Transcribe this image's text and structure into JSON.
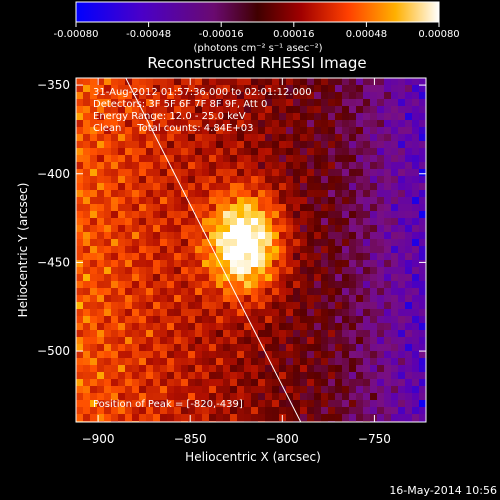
{
  "chart_data": {
    "type": "heatmap",
    "title": "Reconstructed RHESSI Image",
    "colorbar": {
      "ticks": [
        "-0.00080",
        "-0.00048",
        "-0.00016",
        "0.00016",
        "0.00048",
        "0.00080"
      ],
      "range": [
        -0.0008,
        0.0008
      ],
      "label": "(photons cm⁻² s⁻¹ asec⁻²)",
      "colors": [
        "#0000ff",
        "#5a00b4",
        "#7a1080",
        "#5a0000",
        "#b41000",
        "#ff5000",
        "#ffc000",
        "#ffffff"
      ]
    },
    "annotations": [
      "31-Aug-2012 01:57:36.000 to 02:01:12.000",
      "Detectors: 3F 5F 6F 7F 8F 9F, Att 0",
      "Energy Range: 12.0 - 25.0 keV",
      "Clean     Total counts: 4.84E+03"
    ],
    "peak_label": "Position of Peak = [-820,-439]",
    "peak": [
      -820,
      -439
    ],
    "xlabel": "Heliocentric X (arcsec)",
    "ylabel": "Heliocentric Y (arcsec)",
    "xlim": [
      -912,
      -722
    ],
    "ylim": [
      -540,
      -346
    ],
    "xticks": [
      -900,
      -850,
      -800,
      -750
    ],
    "yticks": [
      -350,
      -400,
      -450,
      -500
    ],
    "limb_line": [
      [
        -885,
        -346
      ],
      [
        -790,
        -540
      ]
    ],
    "grid": false,
    "background": "#000000"
  },
  "footer_timestamp": "16-May-2014 10:56"
}
